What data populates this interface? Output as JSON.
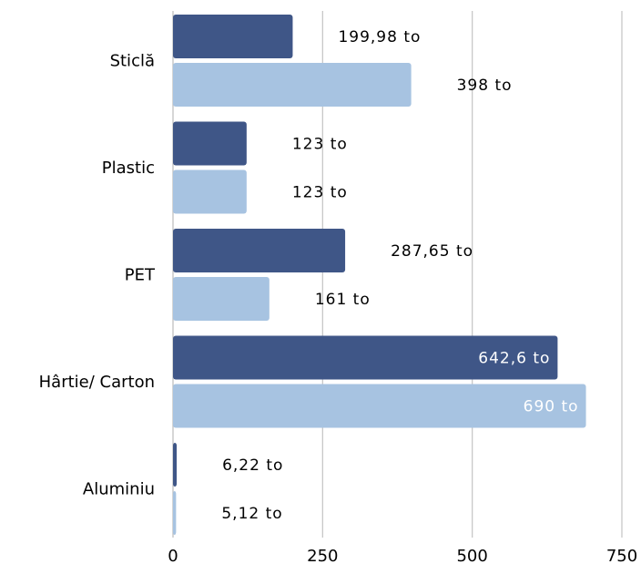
{
  "chart_data": {
    "type": "bar",
    "orientation": "horizontal",
    "categories": [
      "Sticlă",
      "Plastic",
      "PET",
      "Hârtie/ Carton",
      "Aluminiu"
    ],
    "series": [
      {
        "values": [
          199.98,
          123,
          287.65,
          642.6,
          6.22
        ],
        "labels": [
          "199,98 to",
          "123 to",
          "287,65 to",
          "642,6 to",
          "6,22 to"
        ],
        "color": "#3f5687"
      },
      {
        "values": [
          398,
          123,
          161,
          690,
          5.12
        ],
        "labels": [
          "398 to",
          "123 to",
          "161 to",
          "690 to",
          "5,12 to"
        ],
        "color": "#a7c3e1"
      }
    ],
    "x_ticks": [
      "0",
      "250",
      "500",
      "750"
    ],
    "xlim": [
      0,
      750
    ],
    "grid": "vertical",
    "legend": "none",
    "title": "",
    "xlabel": "",
    "ylabel": ""
  }
}
